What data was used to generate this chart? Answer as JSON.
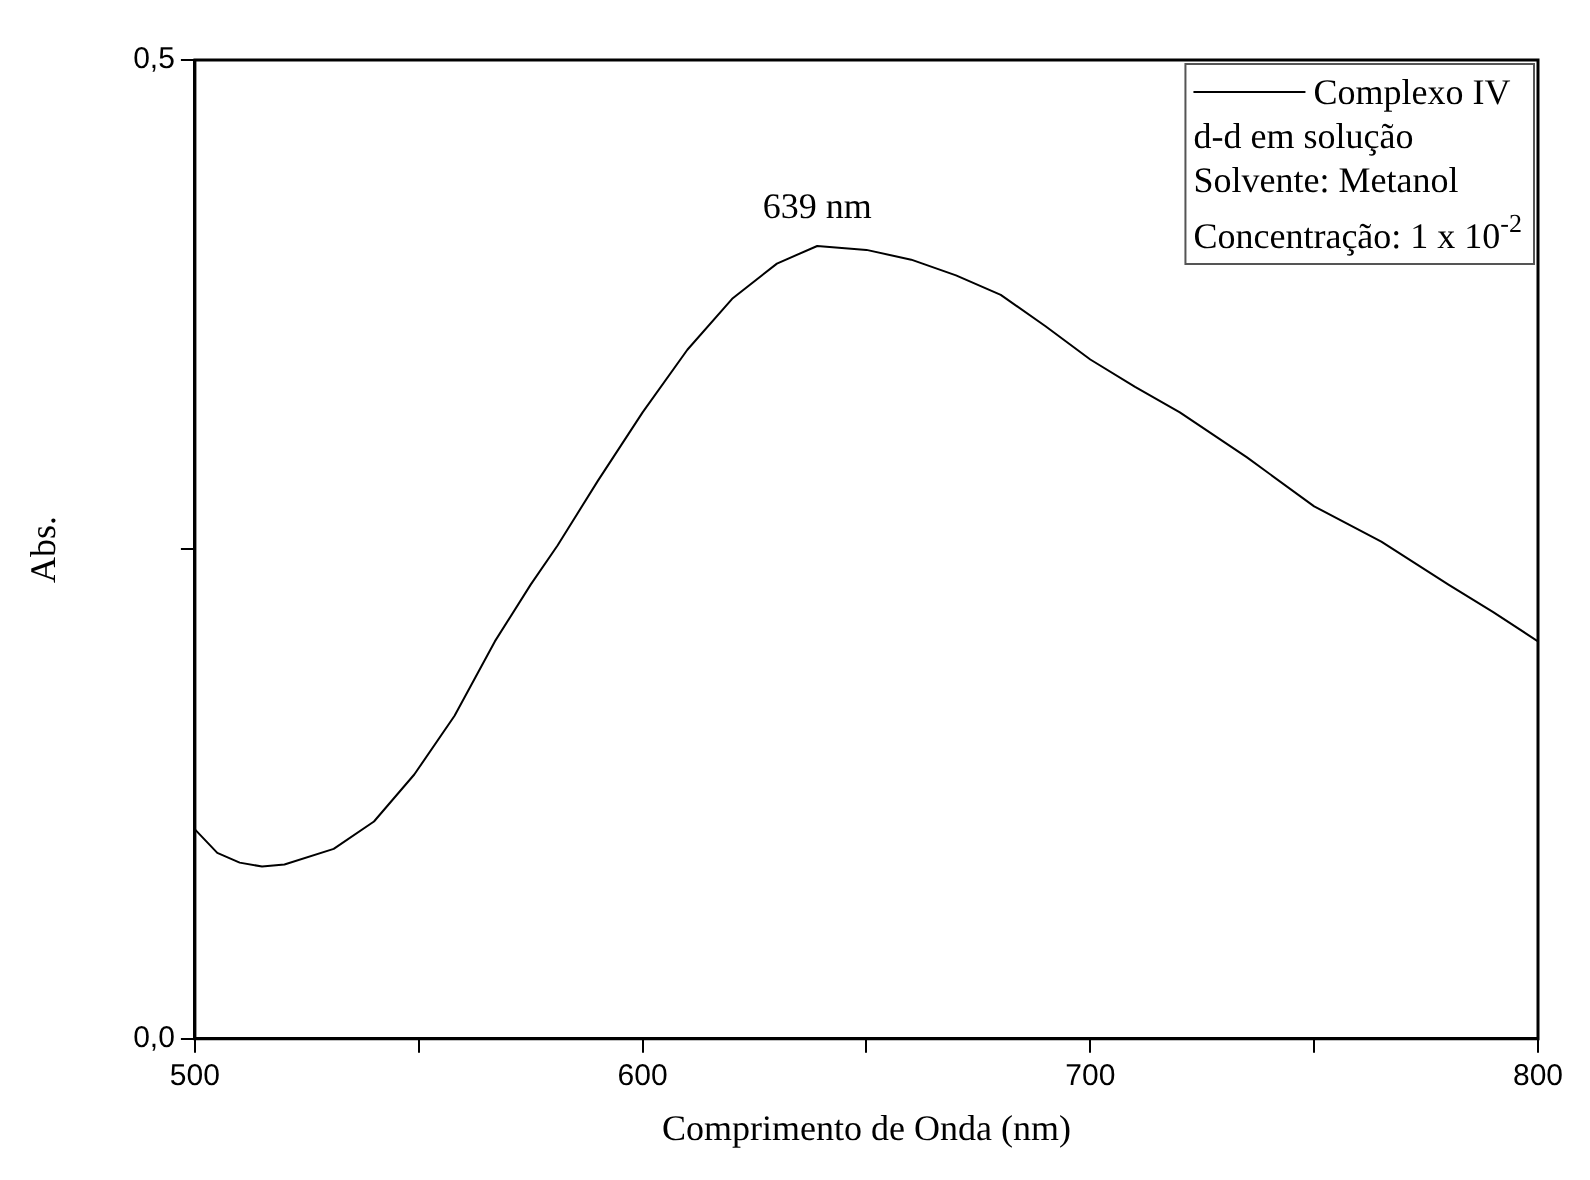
{
  "chart_data": {
    "type": "line",
    "xlabel": "Comprimento de Onda (nm)",
    "ylabel": "Abs.",
    "xlim": [
      500,
      800
    ],
    "xticks": [
      500,
      {
        "value": 550,
        "label": null
      },
      600,
      {
        "value": 650,
        "label": null
      },
      700,
      {
        "value": 750,
        "label": null
      },
      800
    ],
    "ylim": [
      0,
      0.5
    ],
    "yticks": [
      {
        "value": 0,
        "label": "0,0"
      },
      {
        "value": 0.25,
        "label": null
      },
      {
        "value": 0.5,
        "label": "0,5"
      }
    ],
    "grid": false,
    "legend": "top right",
    "marker": "none",
    "line_style": "solid",
    "series": [
      {
        "name": "Complexo IV",
        "color": "#000000",
        "x": [
          500,
          505,
          510,
          515,
          520,
          531,
          540,
          549,
          558,
          567,
          575,
          581,
          590,
          600,
          610,
          620,
          630,
          639,
          650,
          660,
          670,
          680,
          690,
          700,
          710,
          720,
          735,
          750,
          765,
          780,
          790,
          800
        ],
        "values": [
          0.107,
          0.095,
          0.09,
          0.088,
          0.089,
          0.097,
          0.111,
          0.135,
          0.165,
          0.203,
          0.232,
          0.252,
          0.285,
          0.32,
          0.352,
          0.378,
          0.396,
          0.405,
          0.403,
          0.398,
          0.39,
          0.38,
          0.364,
          0.347,
          0.333,
          0.32,
          0.297,
          0.272,
          0.254,
          0.232,
          0.218,
          0.203
        ]
      }
    ],
    "annotations": [
      {
        "text": "639 nm",
        "x": 639,
        "y": 0.405
      },
      "d-d em solução",
      "Solvente: Metanol",
      "Concentração: 1 x 10$^{-2}$"
    ]
  }
}
